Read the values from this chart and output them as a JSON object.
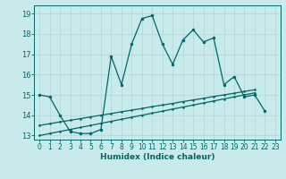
{
  "xlabel": "Humidex (Indice chaleur)",
  "bg_color": "#c8eaea",
  "grid_color": "#b0d4d4",
  "line_color": "#006666",
  "xlim": [
    -0.5,
    23.5
  ],
  "ylim": [
    12.8,
    19.4
  ],
  "yticks": [
    13,
    14,
    15,
    16,
    17,
    18,
    19
  ],
  "xticks": [
    0,
    1,
    2,
    3,
    4,
    5,
    6,
    7,
    8,
    9,
    10,
    11,
    12,
    13,
    14,
    15,
    16,
    17,
    18,
    19,
    20,
    21,
    22,
    23
  ],
  "line1_x": [
    0,
    1,
    2,
    3,
    4,
    5,
    6,
    7,
    8,
    9,
    10,
    11,
    12,
    13,
    14,
    15,
    16,
    17,
    18,
    19,
    20,
    21,
    22
  ],
  "line1_y": [
    15.0,
    14.9,
    14.0,
    13.2,
    13.1,
    13.1,
    13.3,
    16.9,
    15.5,
    17.5,
    18.75,
    18.9,
    17.5,
    16.5,
    17.7,
    18.2,
    17.6,
    17.8,
    15.5,
    15.9,
    14.9,
    15.0,
    14.2
  ],
  "line2_x": [
    0,
    1,
    2,
    3,
    4,
    5,
    6,
    7,
    8,
    9,
    10,
    11,
    12,
    13,
    14,
    15,
    16,
    17,
    18,
    19,
    20,
    21
  ],
  "line2_y": [
    13.5,
    13.58,
    13.67,
    13.75,
    13.83,
    13.92,
    14.0,
    14.08,
    14.17,
    14.25,
    14.33,
    14.42,
    14.5,
    14.58,
    14.67,
    14.75,
    14.83,
    14.92,
    15.0,
    15.08,
    15.17,
    15.25
  ],
  "line3_x": [
    0,
    1,
    2,
    3,
    4,
    5,
    6,
    7,
    8,
    9,
    10,
    11,
    12,
    13,
    14,
    15,
    16,
    17,
    18,
    19,
    20,
    21
  ],
  "line3_y": [
    13.0,
    13.1,
    13.2,
    13.3,
    13.4,
    13.5,
    13.6,
    13.7,
    13.8,
    13.9,
    14.0,
    14.1,
    14.2,
    14.3,
    14.4,
    14.5,
    14.6,
    14.7,
    14.8,
    14.9,
    15.0,
    15.1
  ]
}
